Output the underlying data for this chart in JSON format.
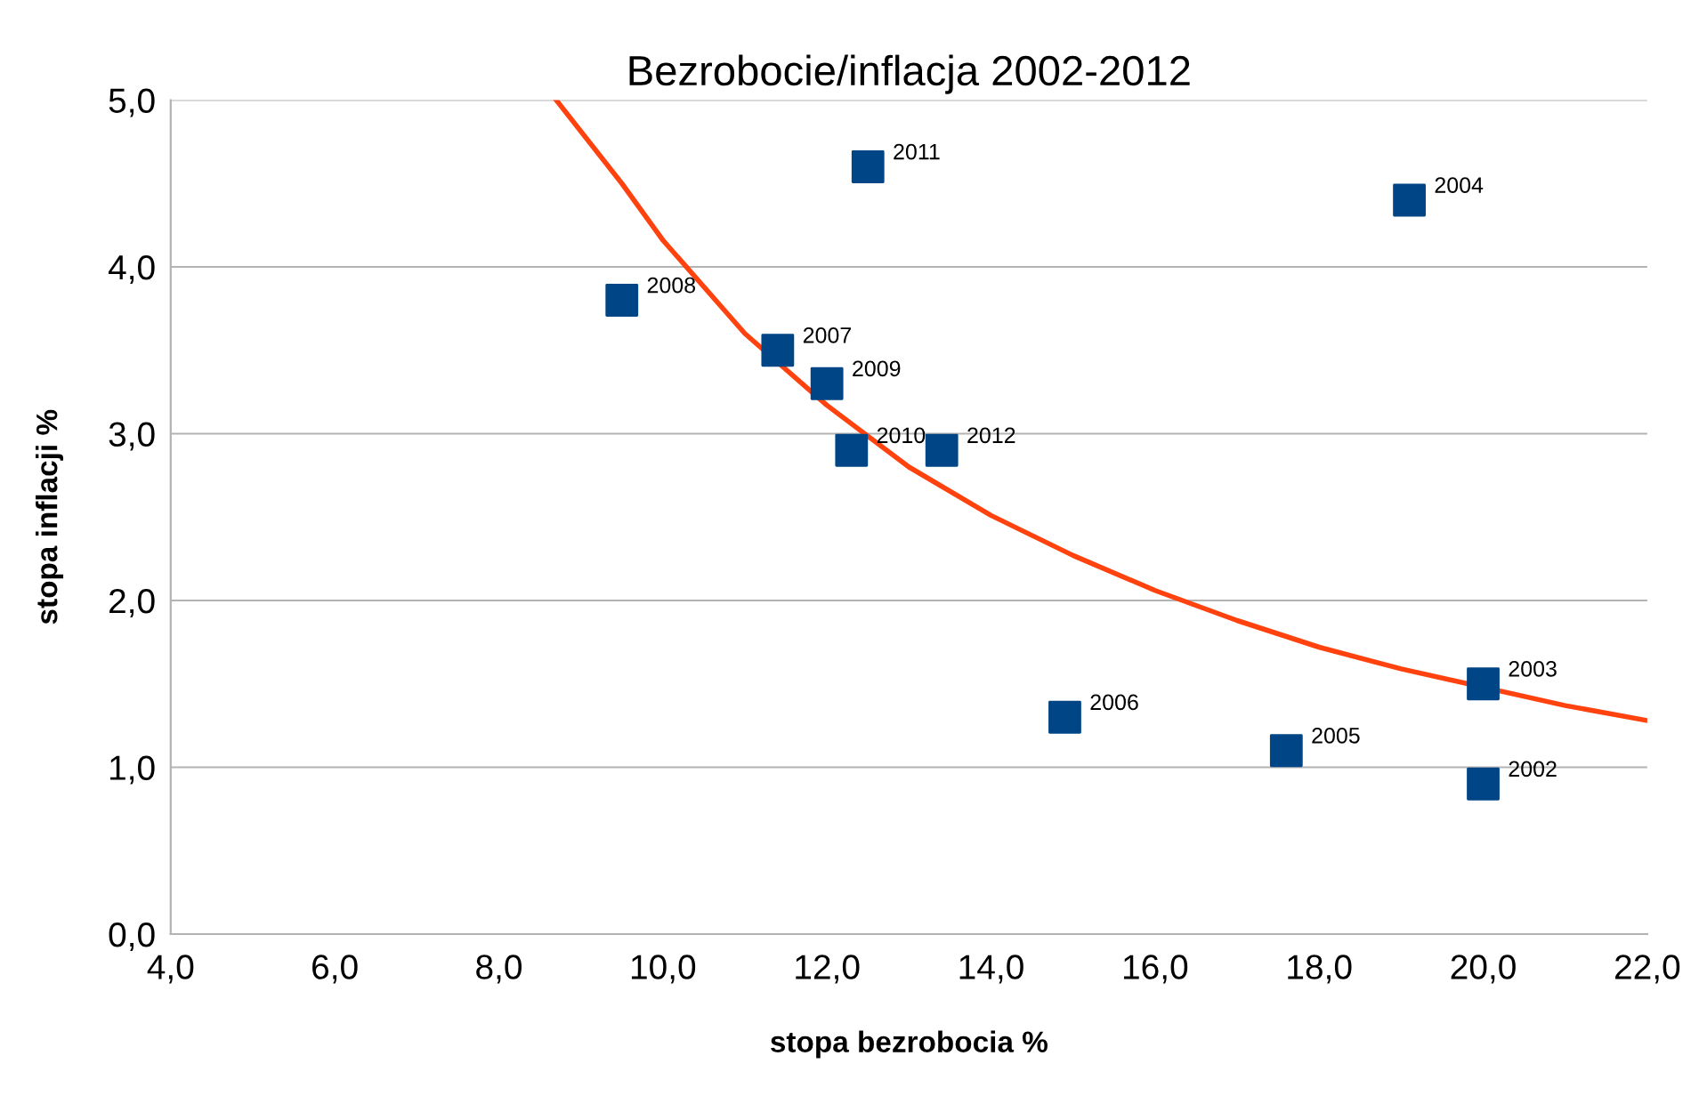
{
  "chart_data": {
    "type": "scatter",
    "title": "Bezrobocie/inflacja 2002-2012",
    "xlabel": "stopa bezrobocia %",
    "ylabel": "stopa inflacji %",
    "series": [
      {
        "color": "#004586",
        "marker": "square",
        "x": [
          20.0,
          20.0,
          19.1,
          17.6,
          14.9,
          11.4,
          9.5,
          12.0,
          12.3,
          12.5,
          13.4
        ],
        "values": [
          0.9,
          1.5,
          4.4,
          1.1,
          1.3,
          3.5,
          3.8,
          3.3,
          2.9,
          4.6,
          2.9
        ]
      },
      {
        "type": "line",
        "color": "#ff420e",
        "marker": "none",
        "line_style": "solid",
        "x": [
          8.7,
          9.5,
          10,
          11,
          12,
          13,
          14,
          15,
          16,
          17,
          18,
          19,
          21,
          22
        ],
        "values": [
          5.0,
          4.5,
          4.16,
          3.6,
          3.17,
          2.8,
          2.51,
          2.27,
          2.06,
          1.88,
          1.72,
          1.59,
          1.37,
          1.28
        ]
      }
    ],
    "annotations": [
      {
        "text": "2002",
        "x": 20.0,
        "y": 0.9
      },
      {
        "text": "2003",
        "x": 20.0,
        "y": 1.5
      },
      {
        "text": "2004",
        "x": 19.1,
        "y": 4.4
      },
      {
        "text": "2005",
        "x": 17.6,
        "y": 1.1
      },
      {
        "text": "2006",
        "x": 14.9,
        "y": 1.3
      },
      {
        "text": "2007",
        "x": 11.4,
        "y": 3.5
      },
      {
        "text": "2008",
        "x": 9.5,
        "y": 3.8
      },
      {
        "text": "2009",
        "x": 12.0,
        "y": 3.3
      },
      {
        "text": "2010",
        "x": 12.3,
        "y": 2.9
      },
      {
        "text": "2011",
        "x": 12.5,
        "y": 4.6
      },
      {
        "text": "2012",
        "x": 13.4,
        "y": 2.9
      }
    ],
    "xlim": [
      4,
      22
    ],
    "ylim": [
      0,
      5
    ],
    "xticks": [
      {
        "value": 4,
        "label": "4,0"
      },
      {
        "value": 6,
        "label": "6,0"
      },
      {
        "value": 8,
        "label": "8,0"
      },
      {
        "value": 10,
        "label": "10,0"
      },
      {
        "value": 12,
        "label": "12,0"
      },
      {
        "value": 14,
        "label": "14,0"
      },
      {
        "value": 16,
        "label": "16,0"
      },
      {
        "value": 18,
        "label": "18,0"
      },
      {
        "value": 20,
        "label": "20,0"
      },
      {
        "value": 22,
        "label": "22,0"
      }
    ],
    "yticks": [
      {
        "value": 0,
        "label": "0,0"
      },
      {
        "value": 1,
        "label": "1,0"
      },
      {
        "value": 2,
        "label": "2,0"
      },
      {
        "value": 3,
        "label": "3,0"
      },
      {
        "value": 4,
        "label": "4,0"
      },
      {
        "value": 5,
        "label": "5,0"
      }
    ],
    "grid": "y",
    "legend": false
  }
}
